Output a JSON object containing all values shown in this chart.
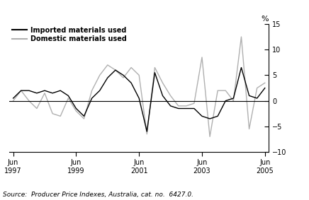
{
  "imported_materials": [
    0.5,
    2.0,
    2.0,
    1.5,
    2.0,
    1.5,
    2.0,
    1.0,
    -1.5,
    -3.0,
    0.5,
    2.0,
    4.5,
    6.0,
    5.0,
    3.5,
    0.5,
    -6.0,
    5.5,
    1.0,
    -1.0,
    -1.5,
    -1.5,
    -1.5,
    -3.0,
    -3.5,
    -3.0,
    0.0,
    0.5,
    6.5,
    1.0,
    0.5,
    2.5
  ],
  "domestic_materials": [
    0.0,
    2.0,
    0.0,
    -1.5,
    1.5,
    -2.5,
    -3.0,
    0.5,
    -2.0,
    -3.5,
    2.0,
    5.0,
    7.0,
    6.0,
    4.5,
    6.5,
    5.0,
    -6.5,
    6.5,
    3.5,
    1.0,
    -1.0,
    -1.0,
    -0.5,
    8.5,
    -7.0,
    2.0,
    2.0,
    0.0,
    12.5,
    -5.5,
    2.5,
    3.5
  ],
  "n_points": 33,
  "ylim": [
    -10,
    15
  ],
  "yticks": [
    -10,
    -5,
    0,
    5,
    10,
    15
  ],
  "xtick_labels": [
    "Jun\n1997",
    "Jun\n1999",
    "Jun\n2001",
    "Jun\n2003",
    "Jun\n2005"
  ],
  "xtick_positions": [
    0,
    8,
    16,
    24,
    32
  ],
  "imported_color": "#000000",
  "domestic_color": "#b0b0b0",
  "imported_label": "Imported materials used",
  "domestic_label": "Domestic materials used",
  "pct_label": "%",
  "source_text": "Source:  Producer Price Indexes, Australia, cat. no.  6427.0.",
  "linewidth": 1.0,
  "zero_line_color": "#000000"
}
